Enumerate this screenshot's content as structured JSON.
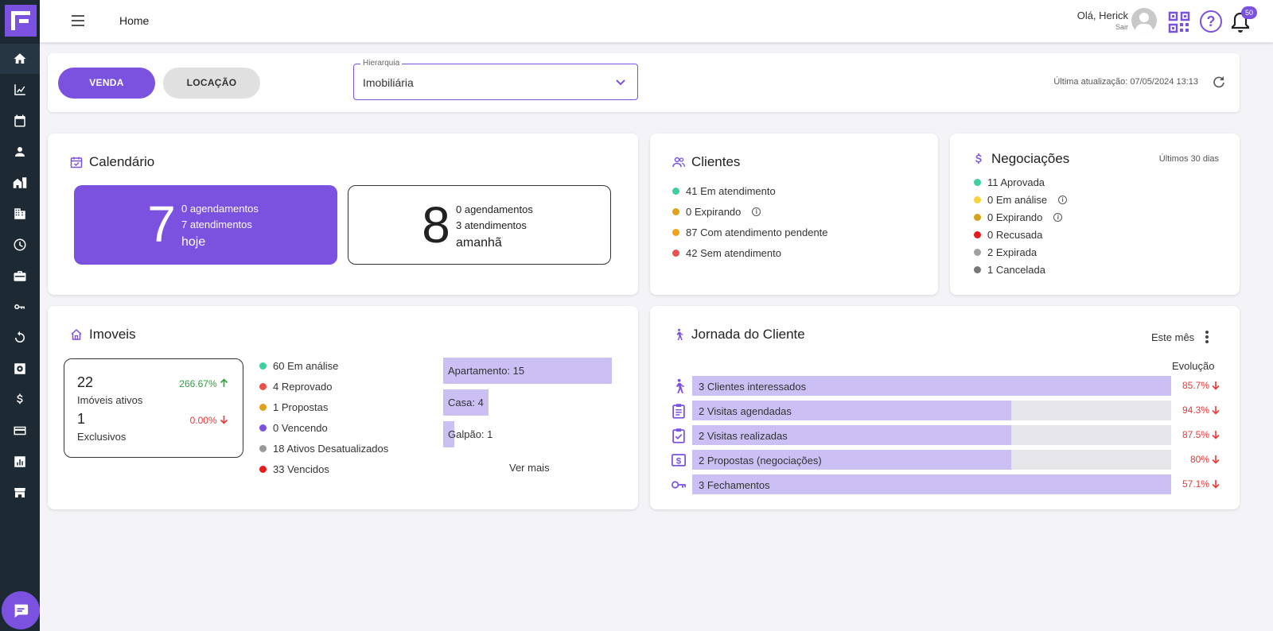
{
  "header": {
    "page_title": "Home",
    "greeting": "Olá, Herick",
    "logout": "Sair",
    "notifications_count": "50"
  },
  "sidebar": {
    "items": [
      "home-icon",
      "chart-icon",
      "calendar-icon",
      "person-icon",
      "building-icon",
      "office-icon",
      "clock-icon",
      "briefcase-icon",
      "key-icon",
      "refresh-icon",
      "safe-icon",
      "dollar-icon",
      "card-icon",
      "report-icon",
      "store-icon"
    ]
  },
  "filter": {
    "venda_label": "VENDA",
    "locacao_label": "LOCAÇÃO",
    "hierarchy_label": "Hierarquia",
    "hierarchy_value": "Imobiliária",
    "last_update": "Última atualização: 07/05/2024 13:13"
  },
  "calendario": {
    "title": "Calendário",
    "today": {
      "number": "7",
      "line1": "0 agendamentos",
      "line2": "7 atendimentos",
      "day": "hoje"
    },
    "tomorrow": {
      "number": "8",
      "line1": "0 agendamentos",
      "line2": "3 atendimentos",
      "day": "amanhã"
    }
  },
  "clientes": {
    "title": "Clientes",
    "items": [
      {
        "label": "41 Em atendimento",
        "color": "#3ecf9e"
      },
      {
        "label": "0 Expirando",
        "color": "#e0a21a"
      },
      {
        "label": "87 Com atendimento pendente",
        "color": "#f0a21a"
      },
      {
        "label": "42 Sem atendimento",
        "color": "#e8514d"
      }
    ]
  },
  "negociacoes": {
    "title": "Negociações",
    "period": "Últimos 30 dias",
    "items": [
      {
        "label": "11 Aprovada",
        "color": "#3ecf9e"
      },
      {
        "label": "0 Em análise",
        "color": "#f6d23c"
      },
      {
        "label": "0 Expirando",
        "color": "#d7a21a"
      },
      {
        "label": "0 Recusada",
        "color": "#e31b1b"
      },
      {
        "label": "2 Expirada",
        "color": "#a0a0a0"
      },
      {
        "label": "1 Cancelada",
        "color": "#777777"
      }
    ]
  },
  "imoveis": {
    "title": "Imoveis",
    "ativos_num": "22",
    "ativos_label": "Imóveis ativos",
    "ativos_pct": "266.67%",
    "exclusivos_num": "1",
    "exclusivos_label": "Exclusivos",
    "exclusivos_pct": "0.00%",
    "status": [
      {
        "label": "60 Em análise",
        "color": "#3ecf9e"
      },
      {
        "label": "4 Reprovado",
        "color": "#e8514d"
      },
      {
        "label": "1 Propostas",
        "color": "#e0a21a"
      },
      {
        "label": "0 Vencendo",
        "color": "#7b52e0"
      },
      {
        "label": "18 Ativos Desatualizados",
        "color": "#999999"
      },
      {
        "label": "33 Vencidos",
        "color": "#e31b1b"
      }
    ],
    "types": [
      {
        "label": "Apartamento: 15",
        "value": 15
      },
      {
        "label": "Casa: 4",
        "value": 4
      },
      {
        "label": "Galpão: 1",
        "value": 1
      }
    ],
    "ver_mais": "Ver mais"
  },
  "jornada": {
    "title": "Jornada do Cliente",
    "period": "Este mês",
    "evolucao": "Evolução",
    "steps": [
      {
        "label": "3 Clientes interessados",
        "value": 3,
        "pct": "85.7%",
        "icon": "walking-person-icon"
      },
      {
        "label": "2 Visitas agendadas",
        "value": 2,
        "pct": "94.3%",
        "icon": "clipboard-icon"
      },
      {
        "label": "2 Visitas realizadas",
        "value": 2,
        "pct": "87.5%",
        "icon": "clipboard-check-icon"
      },
      {
        "label": "2 Propostas (negociações)",
        "value": 2,
        "pct": "80%",
        "icon": "dollar-doc-icon"
      },
      {
        "label": "3 Fechamentos",
        "value": 3,
        "pct": "57.1%",
        "icon": "key-icon"
      }
    ]
  },
  "colors": {
    "accent": "#7b52e0",
    "sidebar": "#1e2a33",
    "bar": "#cbbff3",
    "down": "#e53935",
    "up": "#2e9e3e"
  }
}
